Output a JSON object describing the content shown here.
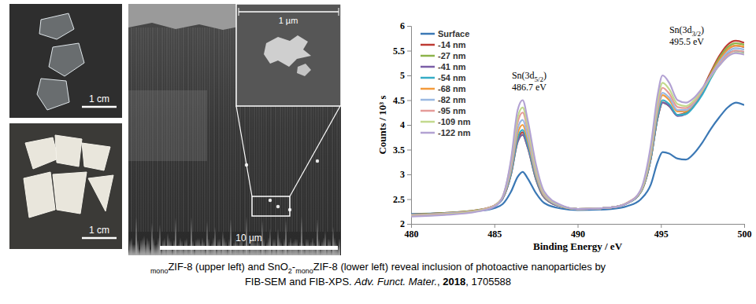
{
  "panels": {
    "photos": [
      {
        "scale_bar": "1 cm"
      },
      {
        "scale_bar": "1 cm"
      }
    ],
    "sem": {
      "scale_bar": "10 µm",
      "inset_scale_bar": "1 µm"
    }
  },
  "caption": {
    "lines": [
      [
        {
          "text": "mono",
          "format": "subscript"
        },
        {
          "text": "ZIF-8 (upper left) and SnO"
        },
        {
          "text": "2",
          "format": "subscript"
        },
        {
          "text": "-"
        },
        {
          "text": "mono",
          "format": "subscript"
        },
        {
          "text": "ZIF-8 (lower left) reveal inclusion of photoactive nanoparticles by"
        }
      ],
      [
        {
          "text": "FIB-SEM and FIB-XPS. "
        },
        {
          "text": "Adv. Funct. Mater.",
          "format": "italic"
        },
        {
          "text": ", "
        },
        {
          "text": "2018",
          "format": "bold"
        },
        {
          "text": ", 1705588"
        }
      ]
    ]
  },
  "chart_data": {
    "type": "line",
    "x_label": "Binding Energy / eV",
    "y_label": "Counts / 10³ s",
    "xlim": [
      480,
      500
    ],
    "xticks": [
      480,
      485,
      490,
      495,
      500
    ],
    "ylim": [
      2,
      6
    ],
    "yticks": [
      2,
      2.5,
      3,
      3.5,
      4,
      4.5,
      5,
      5.5,
      6
    ],
    "grid": false,
    "legend": "top-left",
    "annotations": [
      {
        "lines": [
          [
            {
              "text": "Sn(3d"
            },
            {
              "text": "5/2",
              "format": "subscript"
            },
            {
              "text": ")"
            }
          ],
          [
            {
              "text": "486.7 eV"
            }
          ]
        ]
      },
      {
        "lines": [
          [
            {
              "text": "Sn(3d"
            },
            {
              "text": "3/2",
              "format": "subscript"
            },
            {
              "text": ")"
            }
          ],
          [
            {
              "text": "495.5 eV"
            }
          ]
        ]
      }
    ],
    "x": [
      480,
      482,
      484,
      485,
      485.5,
      486,
      486.4,
      486.7,
      487,
      487.5,
      488,
      489,
      490,
      492,
      493,
      493.8,
      494.4,
      494.8,
      495.1,
      495.5,
      496,
      496.5,
      497,
      497.5,
      498,
      498.5,
      499,
      499.5,
      500
    ],
    "series": [
      {
        "name": "Surface",
        "color": "#3b78b5",
        "values": [
          2.2,
          2.22,
          2.26,
          2.32,
          2.4,
          2.65,
          2.95,
          3.05,
          2.92,
          2.62,
          2.42,
          2.31,
          2.28,
          2.3,
          2.36,
          2.5,
          2.8,
          3.25,
          3.45,
          3.42,
          3.32,
          3.3,
          3.43,
          3.65,
          3.92,
          4.15,
          4.35,
          4.45,
          4.4
        ]
      },
      {
        "name": "-14 nm",
        "color": "#be3a33",
        "values": [
          2.19,
          2.22,
          2.28,
          2.37,
          2.52,
          3.02,
          3.7,
          3.85,
          3.58,
          2.92,
          2.54,
          2.35,
          2.3,
          2.33,
          2.42,
          2.65,
          3.33,
          4.14,
          4.45,
          4.39,
          4.2,
          4.25,
          4.45,
          4.73,
          5.07,
          5.39,
          5.62,
          5.7,
          5.66
        ]
      },
      {
        "name": "-27 nm",
        "color": "#8cb34a",
        "values": [
          2.19,
          2.22,
          2.28,
          2.37,
          2.52,
          3.0,
          3.66,
          3.8,
          3.55,
          2.9,
          2.53,
          2.35,
          2.3,
          2.33,
          2.42,
          2.65,
          3.33,
          4.14,
          4.45,
          4.38,
          4.19,
          4.24,
          4.43,
          4.7,
          5.04,
          5.35,
          5.57,
          5.65,
          5.62
        ]
      },
      {
        "name": "-41 nm",
        "color": "#7b5ea7",
        "values": [
          2.18,
          2.21,
          2.27,
          2.36,
          2.51,
          3.0,
          3.66,
          3.8,
          3.55,
          2.9,
          2.53,
          2.35,
          2.3,
          2.33,
          2.42,
          2.65,
          3.33,
          4.14,
          4.45,
          4.38,
          4.18,
          4.22,
          4.4,
          4.66,
          5.0,
          5.3,
          5.52,
          5.6,
          5.57
        ]
      },
      {
        "name": "-54 nm",
        "color": "#35acc6",
        "values": [
          2.18,
          2.21,
          2.27,
          2.36,
          2.52,
          3.03,
          3.74,
          3.9,
          3.62,
          2.94,
          2.55,
          2.36,
          2.3,
          2.33,
          2.42,
          2.65,
          3.35,
          4.18,
          4.5,
          4.42,
          4.2,
          4.22,
          4.38,
          4.62,
          4.94,
          5.22,
          5.43,
          5.5,
          5.47
        ]
      },
      {
        "name": "-68 nm",
        "color": "#f39a3b",
        "values": [
          2.18,
          2.21,
          2.27,
          2.37,
          2.53,
          3.08,
          3.83,
          4.0,
          3.7,
          2.98,
          2.56,
          2.36,
          2.3,
          2.33,
          2.43,
          2.66,
          3.4,
          4.27,
          4.6,
          4.5,
          4.27,
          4.28,
          4.44,
          4.7,
          5.02,
          5.3,
          5.52,
          5.6,
          5.58
        ]
      },
      {
        "name": "-82 nm",
        "color": "#9ab8e2",
        "values": [
          2.18,
          2.21,
          2.27,
          2.37,
          2.54,
          3.12,
          3.92,
          4.1,
          3.78,
          3.02,
          2.58,
          2.36,
          2.3,
          2.33,
          2.43,
          2.67,
          3.43,
          4.32,
          4.65,
          4.55,
          4.3,
          4.3,
          4.45,
          4.7,
          5.0,
          5.26,
          5.47,
          5.55,
          5.52
        ]
      },
      {
        "name": "-95 nm",
        "color": "#e59b98",
        "values": [
          2.17,
          2.2,
          2.27,
          2.37,
          2.55,
          3.2,
          4.05,
          4.25,
          3.9,
          3.08,
          2.6,
          2.37,
          2.3,
          2.33,
          2.43,
          2.68,
          3.48,
          4.4,
          4.75,
          4.63,
          4.36,
          4.34,
          4.47,
          4.7,
          4.98,
          5.22,
          5.42,
          5.5,
          5.48
        ]
      },
      {
        "name": "-109 nm",
        "color": "#c3d98e",
        "values": [
          2.16,
          2.19,
          2.26,
          2.36,
          2.55,
          3.25,
          4.15,
          4.35,
          3.98,
          3.12,
          2.62,
          2.37,
          2.3,
          2.33,
          2.42,
          2.68,
          3.52,
          4.48,
          4.85,
          4.72,
          4.42,
          4.38,
          4.5,
          4.72,
          4.98,
          5.2,
          5.38,
          5.46,
          5.44
        ]
      },
      {
        "name": "-122 nm",
        "color": "#b3a2d3",
        "values": [
          2.15,
          2.18,
          2.25,
          2.35,
          2.55,
          3.3,
          4.3,
          4.5,
          4.1,
          3.2,
          2.65,
          2.38,
          2.3,
          2.33,
          2.42,
          2.7,
          3.6,
          4.6,
          5.0,
          4.85,
          4.5,
          4.45,
          4.55,
          4.75,
          5.0,
          5.2,
          5.38,
          5.45,
          5.42
        ]
      }
    ]
  }
}
